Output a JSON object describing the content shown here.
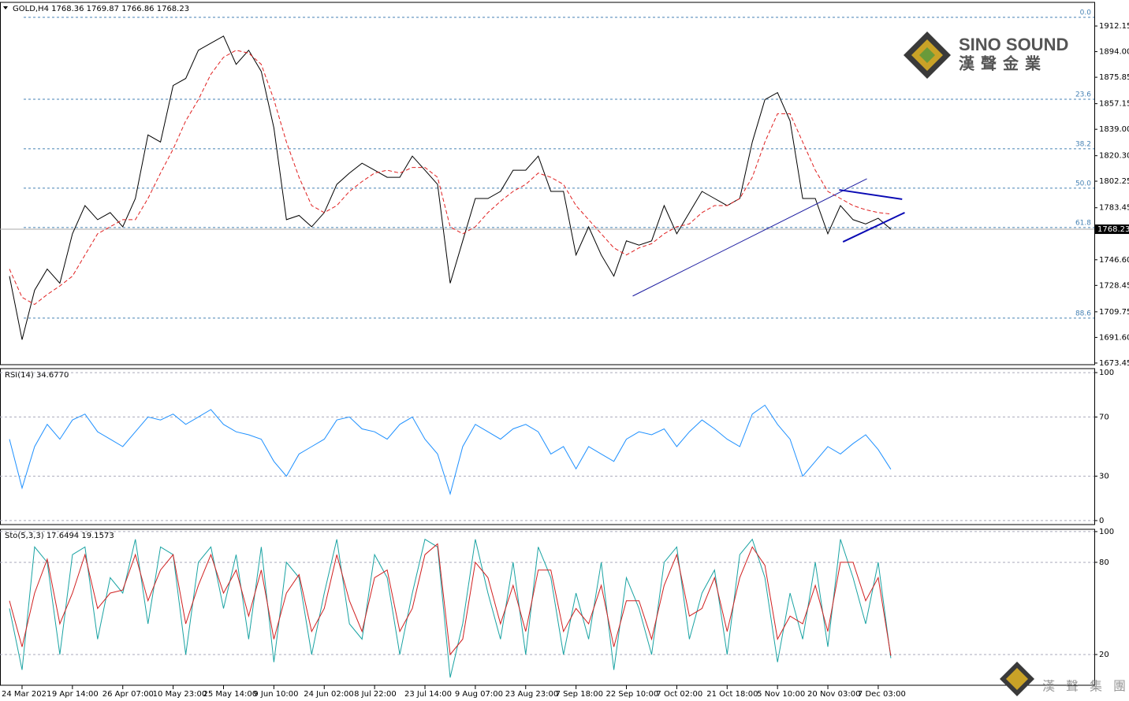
{
  "chart_data": [
    {
      "type": "line",
      "title": "GOLD,H4  1768.36 1769.87 1766.86 1768.23",
      "categories": [
        null,
        "24 Mar 2021",
        null,
        null,
        null,
        "9 Apr 14:00",
        null,
        null,
        null,
        "26 Apr 07:00",
        null,
        null,
        null,
        "10 May 23:00",
        null,
        null,
        null,
        "25 May 14:00",
        null,
        null,
        null,
        "9 Jun 10:00",
        null,
        null,
        null,
        "24 Jun 02:00",
        null,
        null,
        null,
        "8 Jul 22:00",
        null,
        null,
        null,
        "23 Jul 14:00",
        null,
        null,
        null,
        "9 Aug 07:00",
        null,
        null,
        null,
        "23 Aug 23:00",
        null,
        null,
        null,
        "7 Sep 18:00",
        null,
        null,
        null,
        "22 Sep 10:00",
        null,
        null,
        null,
        "7 Oct 02:00",
        null,
        null,
        null,
        "21 Oct 18:00",
        null,
        null,
        null,
        "5 Nov 10:00",
        null,
        null,
        null,
        "20 Nov 03:00",
        null,
        null,
        null,
        "7 Dec 03:00",
        null
      ],
      "series": [
        {
          "color": "#000000",
          "style": "solid",
          "values": [
            1735,
            1690,
            1725,
            1740,
            1730,
            1765,
            1785,
            1775,
            1780,
            1770,
            1790,
            1835,
            1830,
            1870,
            1875,
            1895,
            1900,
            1905,
            1885,
            1895,
            1880,
            1840,
            1775,
            1778,
            1770,
            1780,
            1800,
            1808,
            1815,
            1810,
            1805,
            1805,
            1820,
            1810,
            1800,
            1730,
            1760,
            1790,
            1790,
            1795,
            1810,
            1810,
            1820,
            1795,
            1795,
            1750,
            1770,
            1750,
            1735,
            1760,
            1757,
            1760,
            1785,
            1765,
            1780,
            1795,
            1790,
            1785,
            1790,
            1830,
            1860,
            1865,
            1845,
            1790,
            1790,
            1765,
            1785,
            1775,
            1772,
            1776,
            1768.23
          ]
        },
        {
          "color": "#e02020",
          "style": "dashed",
          "values": [
            1740,
            1720,
            1715,
            1722,
            1728,
            1735,
            1750,
            1765,
            1770,
            1775,
            1775,
            1790,
            1808,
            1825,
            1845,
            1860,
            1878,
            1890,
            1895,
            1893,
            1885,
            1860,
            1830,
            1805,
            1785,
            1780,
            1785,
            1795,
            1802,
            1808,
            1810,
            1808,
            1812,
            1812,
            1805,
            1770,
            1765,
            1770,
            1780,
            1788,
            1795,
            1800,
            1808,
            1805,
            1800,
            1785,
            1775,
            1765,
            1755,
            1750,
            1755,
            1758,
            1765,
            1770,
            1772,
            1780,
            1785,
            1785,
            1790,
            1805,
            1830,
            1850,
            1850,
            1830,
            1810,
            1795,
            1790,
            1785,
            1782,
            1780,
            1779
          ]
        }
      ],
      "ylim": [
        1672.3,
        1928.9
      ],
      "yticks": [
        1912.15,
        {
          "value": 1894.0,
          "label": "1894.00"
        },
        1875.85,
        1857.15,
        {
          "value": 1839.0,
          "label": "1839.00"
        },
        {
          "value": 1820.3,
          "label": "1820.30"
        },
        1802.25,
        1783.45,
        {
          "value": 1746.6,
          "label": "1746.60"
        },
        1728.45,
        1709.75,
        {
          "value": 1691.6,
          "label": "1691.60"
        },
        1673.45
      ],
      "last_price": 1768.23,
      "levels": [
        {
          "label": "0.0",
          "value": 1918.3
        },
        {
          "label": "23.6",
          "value": 1860.3
        },
        {
          "label": "38.2",
          "value": 1825.2
        },
        {
          "label": "50.0",
          "value": 1797.3
        },
        {
          "label": "61.8",
          "value": 1769.4
        },
        {
          "label": "88.6",
          "value": 1705.3
        }
      ],
      "trendlines": [
        {
          "color": "#1a1aa0",
          "x": [
            49.5,
            68.1
          ],
          "y": [
            1720.9,
            1804
          ]
        },
        {
          "color": "#0a0ab4",
          "x": [
            65.9,
            70.9
          ],
          "y": [
            1796.1,
            1789.5
          ]
        },
        {
          "color": "#0a0ab4",
          "x": [
            66.2,
            71.1
          ],
          "y": [
            1759.3,
            1780
          ]
        }
      ]
    },
    {
      "type": "line",
      "title": "RSI(14) 34.6770",
      "series": [
        {
          "color": "#1e90ff",
          "style": "solid",
          "values": [
            55,
            22,
            50,
            65,
            55,
            68,
            72,
            60,
            55,
            50,
            60,
            70,
            68,
            72,
            65,
            70,
            75,
            65,
            60,
            58,
            55,
            40,
            30,
            45,
            50,
            55,
            68,
            70,
            62,
            60,
            55,
            65,
            70,
            55,
            45,
            18,
            50,
            65,
            60,
            55,
            62,
            65,
            60,
            45,
            50,
            35,
            50,
            45,
            40,
            55,
            60,
            58,
            62,
            50,
            60,
            68,
            62,
            55,
            50,
            72,
            78,
            65,
            55,
            30,
            40,
            50,
            45,
            52,
            58,
            48,
            34.677
          ]
        }
      ],
      "ylim": [
        -2.7,
        102.7
      ],
      "yticks": [
        100,
        70,
        30,
        0
      ],
      "grid": true
    },
    {
      "type": "line",
      "title": "Sto(5,3,3) 17.6494 19.1573",
      "series": [
        {
          "color": "#1aa3a3",
          "style": "solid",
          "values": [
            50,
            10,
            90,
            80,
            20,
            85,
            90,
            30,
            70,
            60,
            95,
            40,
            90,
            85,
            20,
            80,
            90,
            50,
            85,
            30,
            90,
            15,
            80,
            70,
            20,
            60,
            95,
            40,
            30,
            85,
            70,
            20,
            60,
            95,
            90,
            5,
            40,
            95,
            60,
            30,
            80,
            20,
            90,
            70,
            20,
            60,
            30,
            80,
            10,
            70,
            50,
            20,
            80,
            90,
            30,
            60,
            75,
            20,
            85,
            95,
            70,
            15,
            60,
            30,
            80,
            25,
            95,
            70,
            40,
            80,
            17.6494
          ]
        },
        {
          "color": "#d02020",
          "style": "solid",
          "values": [
            55,
            25,
            60,
            82,
            40,
            60,
            85,
            50,
            60,
            62,
            85,
            55,
            75,
            85,
            40,
            65,
            85,
            60,
            75,
            45,
            75,
            30,
            60,
            72,
            35,
            50,
            85,
            55,
            35,
            70,
            75,
            35,
            50,
            85,
            92,
            20,
            30,
            80,
            70,
            40,
            65,
            35,
            75,
            75,
            35,
            50,
            40,
            65,
            25,
            55,
            55,
            30,
            65,
            85,
            45,
            50,
            70,
            35,
            70,
            90,
            78,
            30,
            45,
            40,
            65,
            35,
            80,
            80,
            55,
            70,
            19.1573
          ]
        }
      ],
      "ylim": [
        0,
        101.5
      ],
      "yticks": [
        100,
        80,
        20
      ],
      "grid": true
    }
  ],
  "logo": {
    "brand": "SINO SOUND",
    "chinese": "漢聲金業",
    "footer": "漢聲集團"
  }
}
